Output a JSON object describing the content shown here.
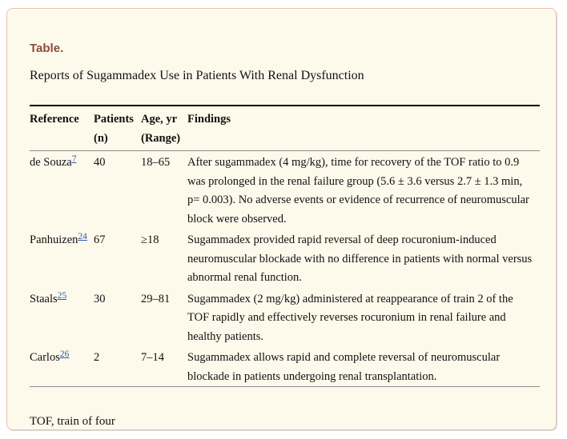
{
  "card": {
    "label": "Table.",
    "title": "Reports of Sugammadex Use in Patients With Renal Dysfunction",
    "footnote": "TOF, train of four"
  },
  "table": {
    "headers": {
      "reference": "Reference",
      "patients": [
        "Patients",
        "(n)"
      ],
      "age": [
        "Age, yr",
        "(Range)"
      ],
      "findings": "Findings"
    },
    "rows": [
      {
        "reference": "de Souza",
        "ref_citation": "7",
        "patients": "40",
        "age": "18–65",
        "findings": "After sugammadex (4 mg/kg), time for recovery of the TOF ratio to 0.9 was prolonged in the renal failure group (5.6 ± 3.6 versus 2.7 ± 1.3 min, p= 0.003). No adverse events or evidence of recurrence of neuromuscular block were observed."
      },
      {
        "reference": "Panhuizen",
        "ref_citation": "24",
        "patients": "67",
        "age": "≥18",
        "findings": "Sugammadex provided rapid reversal of deep rocuronium-induced neuromuscular blockade with no difference in patients with normal versus abnormal renal function."
      },
      {
        "reference": "Staals",
        "ref_citation": "25",
        "patients": "30",
        "age": "29–81",
        "findings": "Sugammadex (2 mg/kg) administered at reappearance of train 2 of the TOF rapidly and effectively reverses rocuronium in renal failure and healthy patients."
      },
      {
        "reference": "Carlos",
        "ref_citation": "26",
        "patients": "2",
        "age": "7–14",
        "findings": "Sugammadex allows rapid and complete reversal of neuromuscular blockade in patients undergoing renal transplantation."
      }
    ]
  },
  "colors": {
    "accent_label": "#8c4b3c",
    "card_border": "#eec0ae",
    "card_background": "#fdfaeb",
    "link": "#2e58b0",
    "rule_top": "#000000",
    "rule_gray": "#8a8a8a"
  }
}
